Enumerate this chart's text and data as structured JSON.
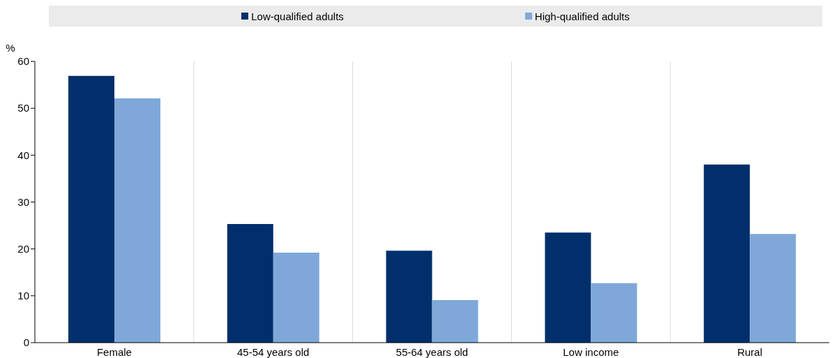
{
  "chart_data": {
    "type": "bar",
    "ylabel": "%",
    "categories": [
      "Female",
      "45-54 years old",
      "55-64 years old",
      "Low income",
      "Rural"
    ],
    "series": [
      {
        "name": "Low-qualified adults",
        "color": "#002f6c",
        "values": [
          56.9,
          25.3,
          19.6,
          23.5,
          38.0
        ]
      },
      {
        "name": "High-qualified adults",
        "color": "#7fa8d9",
        "values": [
          52.1,
          19.2,
          9.1,
          12.7,
          23.2
        ]
      }
    ],
    "ylim": [
      0,
      60
    ],
    "yticks": [
      0,
      10,
      20,
      30,
      40,
      50,
      60
    ],
    "grid": "x",
    "legend": "top"
  }
}
